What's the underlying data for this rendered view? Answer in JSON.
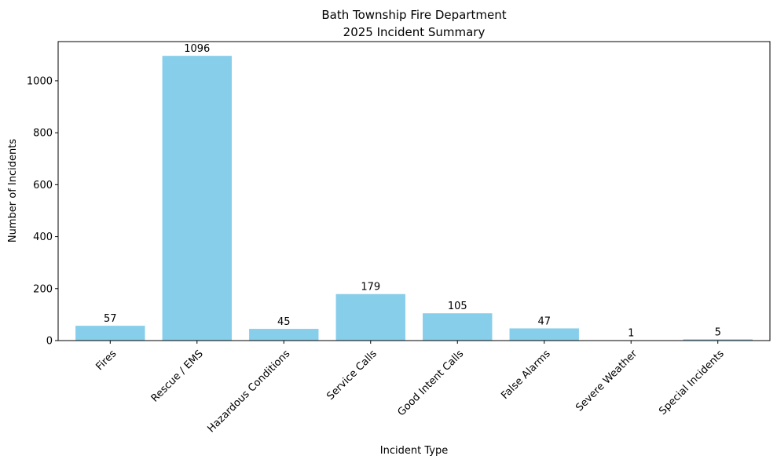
{
  "chart_data": {
    "type": "bar",
    "title": [
      "Bath Township Fire Department",
      "2025 Incident Summary"
    ],
    "xlabel": "Incident Type",
    "ylabel": "Number of Incidents",
    "categories": [
      "Fires",
      "Rescue / EMS",
      "Hazardous Conditions",
      "Service Calls",
      "Good Intent Calls",
      "False Alarms",
      "Severe Weather",
      "Special Incidents"
    ],
    "values": [
      57,
      1096,
      45,
      179,
      105,
      47,
      1,
      5
    ],
    "value_labels": [
      "57",
      "1096",
      "45",
      "179",
      "105",
      "47",
      "1",
      "5"
    ],
    "yticks": [
      0,
      200,
      400,
      600,
      800,
      1000
    ],
    "ylim": [
      0,
      1150.8
    ],
    "grid": false,
    "legend": "none",
    "bar_color": "#87ceeb"
  }
}
